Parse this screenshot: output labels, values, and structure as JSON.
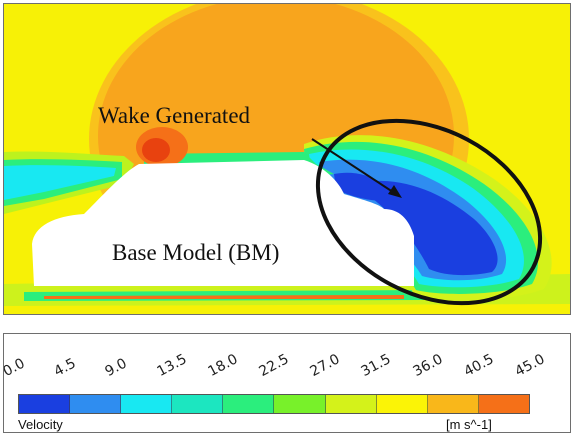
{
  "plot": {
    "wake_label": "Wake Generated",
    "model_label": "Base Model (BM)"
  },
  "colorbar": {
    "variable": "Velocity",
    "units": "[m s^-1]",
    "ticks": [
      "0.0",
      "4.5",
      "9.0",
      "13.5",
      "18.0",
      "22.5",
      "27.0",
      "31.5",
      "36.0",
      "40.5",
      "45.0"
    ],
    "colors": [
      "#1a3fe0",
      "#2f8df0",
      "#18e8f2",
      "#1ce6c0",
      "#2bee7d",
      "#78f12a",
      "#d4f21a",
      "#fbf406",
      "#f9b71a",
      "#f57018"
    ]
  },
  "colors": {
    "background_freestream": "#f7f106",
    "dome": "#f8a51d",
    "near_wall": "#3cf0a0",
    "wake_core": "#1a3fe0",
    "body": "#ffffff",
    "ellipse": "#111111",
    "arrow": "#111111"
  }
}
